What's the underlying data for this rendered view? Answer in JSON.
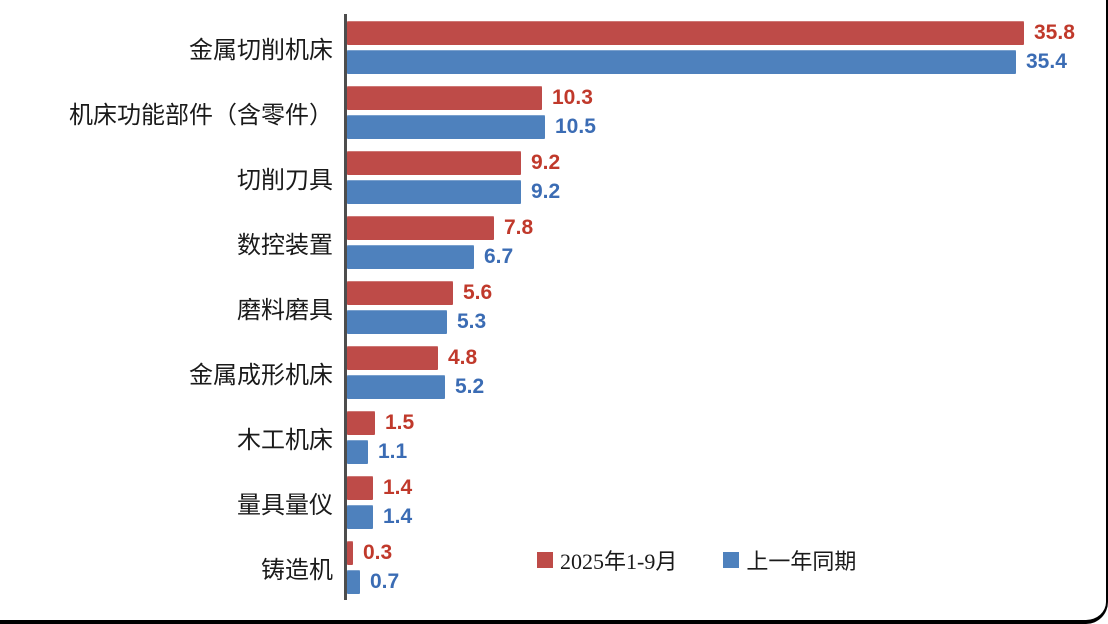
{
  "chart_data": {
    "type": "bar",
    "orientation": "horizontal",
    "title": "",
    "xlabel": "",
    "ylabel": "",
    "xlim": [
      0,
      38
    ],
    "grid": false,
    "legend_position": "bottom-center",
    "axis_color": "#4d4d4d",
    "categories": [
      "金属切削机床",
      "机床功能部件（含零件）",
      "切削刀具",
      "数控装置",
      "磨料磨具",
      "金属成形机床",
      "木工机床",
      "量具量仪",
      "铸造机"
    ],
    "series": [
      {
        "name": "2025年1-9月",
        "color": "#BE4B48",
        "label_color": "#C0392B",
        "values": [
          35.8,
          10.3,
          9.2,
          7.8,
          5.6,
          4.8,
          1.5,
          1.4,
          0.3
        ]
      },
      {
        "name": "上一年同期",
        "color": "#4E81BD",
        "label_color": "#3B6CB4",
        "values": [
          35.4,
          10.5,
          9.2,
          6.7,
          5.3,
          5.2,
          1.1,
          1.4,
          0.7
        ]
      }
    ]
  }
}
